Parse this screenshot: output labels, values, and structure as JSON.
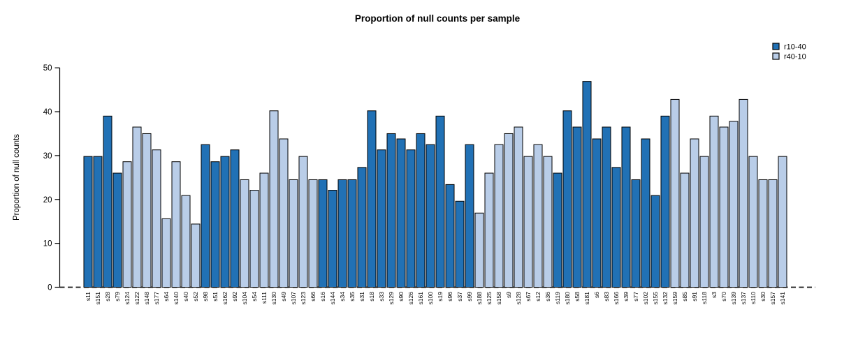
{
  "figure_title": "Proportion of null counts per sample",
  "chart_data": {
    "type": "bar",
    "title": "Proportion of null counts per sample",
    "xlabel": "",
    "ylabel": "Proportion of null counts",
    "ylim": [
      0,
      50
    ],
    "yticks": [
      0,
      10,
      20,
      30,
      40,
      50
    ],
    "grid": false,
    "legend_position": "top-right",
    "zero_line_style": "dashed",
    "legend": [
      {
        "label": "r10-40",
        "color": "#2171b5"
      },
      {
        "label": "r40-10",
        "color": "#b9cde8"
      }
    ],
    "bars": [
      {
        "sample": "s11",
        "group": "r10-40",
        "value": 29.8
      },
      {
        "sample": "s151",
        "group": "r10-40",
        "value": 29.8
      },
      {
        "sample": "s28",
        "group": "r10-40",
        "value": 39.0
      },
      {
        "sample": "s79",
        "group": "r10-40",
        "value": 26.0
      },
      {
        "sample": "s124",
        "group": "r40-10",
        "value": 28.6
      },
      {
        "sample": "s122",
        "group": "r40-10",
        "value": 36.5
      },
      {
        "sample": "s148",
        "group": "r40-10",
        "value": 35.0
      },
      {
        "sample": "s177",
        "group": "r40-10",
        "value": 31.3
      },
      {
        "sample": "s64",
        "group": "r40-10",
        "value": 15.6
      },
      {
        "sample": "s140",
        "group": "r40-10",
        "value": 28.6
      },
      {
        "sample": "s40",
        "group": "r40-10",
        "value": 20.9
      },
      {
        "sample": "s52",
        "group": "r40-10",
        "value": 14.4
      },
      {
        "sample": "s98",
        "group": "r10-40",
        "value": 32.5
      },
      {
        "sample": "s51",
        "group": "r10-40",
        "value": 28.6
      },
      {
        "sample": "s162",
        "group": "r10-40",
        "value": 29.8
      },
      {
        "sample": "s92",
        "group": "r10-40",
        "value": 31.3
      },
      {
        "sample": "s104",
        "group": "r40-10",
        "value": 24.5
      },
      {
        "sample": "s54",
        "group": "r40-10",
        "value": 22.1
      },
      {
        "sample": "s111",
        "group": "r40-10",
        "value": 26.0
      },
      {
        "sample": "s130",
        "group": "r40-10",
        "value": 40.2
      },
      {
        "sample": "s49",
        "group": "r40-10",
        "value": 33.8
      },
      {
        "sample": "s107",
        "group": "r40-10",
        "value": 24.5
      },
      {
        "sample": "s123",
        "group": "r40-10",
        "value": 29.8
      },
      {
        "sample": "s66",
        "group": "r40-10",
        "value": 24.5
      },
      {
        "sample": "s16",
        "group": "r10-40",
        "value": 24.5
      },
      {
        "sample": "s144",
        "group": "r10-40",
        "value": 22.1
      },
      {
        "sample": "s34",
        "group": "r10-40",
        "value": 24.5
      },
      {
        "sample": "s35",
        "group": "r10-40",
        "value": 24.5
      },
      {
        "sample": "s31",
        "group": "r10-40",
        "value": 27.3
      },
      {
        "sample": "s18",
        "group": "r10-40",
        "value": 40.2
      },
      {
        "sample": "s33",
        "group": "r10-40",
        "value": 31.3
      },
      {
        "sample": "s129",
        "group": "r10-40",
        "value": 35.0
      },
      {
        "sample": "s90",
        "group": "r10-40",
        "value": 33.8
      },
      {
        "sample": "s126",
        "group": "r10-40",
        "value": 31.3
      },
      {
        "sample": "s161",
        "group": "r10-40",
        "value": 35.0
      },
      {
        "sample": "s100",
        "group": "r10-40",
        "value": 32.5
      },
      {
        "sample": "s19",
        "group": "r10-40",
        "value": 39.0
      },
      {
        "sample": "s96",
        "group": "r10-40",
        "value": 23.4
      },
      {
        "sample": "s37",
        "group": "r10-40",
        "value": 19.6
      },
      {
        "sample": "s99",
        "group": "r10-40",
        "value": 32.5
      },
      {
        "sample": "s188",
        "group": "r40-10",
        "value": 16.9
      },
      {
        "sample": "s125",
        "group": "r40-10",
        "value": 26.0
      },
      {
        "sample": "s158",
        "group": "r40-10",
        "value": 32.5
      },
      {
        "sample": "s9",
        "group": "r40-10",
        "value": 35.0
      },
      {
        "sample": "s128",
        "group": "r40-10",
        "value": 36.5
      },
      {
        "sample": "s67",
        "group": "r40-10",
        "value": 29.8
      },
      {
        "sample": "s12",
        "group": "r40-10",
        "value": 32.5
      },
      {
        "sample": "s36",
        "group": "r40-10",
        "value": 29.8
      },
      {
        "sample": "s119",
        "group": "r10-40",
        "value": 26.0
      },
      {
        "sample": "s180",
        "group": "r10-40",
        "value": 40.2
      },
      {
        "sample": "s58",
        "group": "r10-40",
        "value": 36.5
      },
      {
        "sample": "s181",
        "group": "r10-40",
        "value": 46.9
      },
      {
        "sample": "s6",
        "group": "r10-40",
        "value": 33.8
      },
      {
        "sample": "s83",
        "group": "r10-40",
        "value": 36.5
      },
      {
        "sample": "s166",
        "group": "r10-40",
        "value": 27.3
      },
      {
        "sample": "s39",
        "group": "r10-40",
        "value": 36.5
      },
      {
        "sample": "s77",
        "group": "r10-40",
        "value": 24.5
      },
      {
        "sample": "s102",
        "group": "r10-40",
        "value": 33.8
      },
      {
        "sample": "s155",
        "group": "r10-40",
        "value": 20.9
      },
      {
        "sample": "s132",
        "group": "r10-40",
        "value": 39.0
      },
      {
        "sample": "s159",
        "group": "r40-10",
        "value": 42.8
      },
      {
        "sample": "s85",
        "group": "r40-10",
        "value": 26.0
      },
      {
        "sample": "s91",
        "group": "r40-10",
        "value": 33.8
      },
      {
        "sample": "s118",
        "group": "r40-10",
        "value": 29.8
      },
      {
        "sample": "s3",
        "group": "r40-10",
        "value": 39.0
      },
      {
        "sample": "s70",
        "group": "r40-10",
        "value": 36.5
      },
      {
        "sample": "s139",
        "group": "r40-10",
        "value": 37.8
      },
      {
        "sample": "s137",
        "group": "r40-10",
        "value": 42.8
      },
      {
        "sample": "s110",
        "group": "r40-10",
        "value": 29.8
      },
      {
        "sample": "s30",
        "group": "r40-10",
        "value": 24.5
      },
      {
        "sample": "s157",
        "group": "r40-10",
        "value": 24.5
      },
      {
        "sample": "s141",
        "group": "r40-10",
        "value": 29.8
      }
    ]
  }
}
